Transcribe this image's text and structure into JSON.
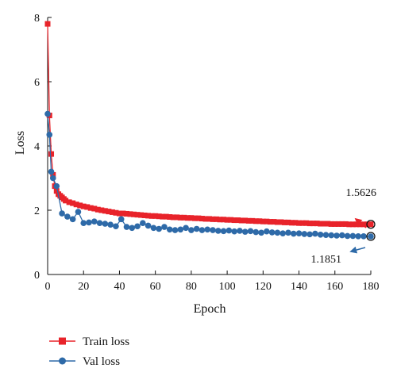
{
  "chart_data": {
    "type": "line",
    "xlabel": "Epoch",
    "ylabel": "Loss",
    "xlim": [
      0,
      180
    ],
    "ylim": [
      0,
      8
    ],
    "xticks": [
      0,
      20,
      40,
      60,
      80,
      100,
      120,
      140,
      160,
      180
    ],
    "yticks": [
      0,
      2,
      4,
      6,
      8
    ],
    "grid": false,
    "legend_position": "bottom-left",
    "series": [
      {
        "name": "Train loss",
        "color": "#e8232a",
        "marker": "square",
        "x": [
          0,
          1,
          2,
          3,
          4,
          5,
          6,
          7,
          8,
          9,
          10,
          12,
          14,
          16,
          18,
          20,
          22,
          24,
          26,
          28,
          30,
          32,
          34,
          36,
          38,
          40,
          42,
          44,
          46,
          48,
          50,
          52,
          54,
          56,
          58,
          60,
          62,
          64,
          66,
          68,
          70,
          72,
          74,
          76,
          78,
          80,
          82,
          84,
          86,
          88,
          90,
          92,
          94,
          96,
          98,
          100,
          102,
          104,
          106,
          108,
          110,
          112,
          114,
          116,
          118,
          120,
          122,
          124,
          126,
          128,
          130,
          132,
          134,
          136,
          138,
          140,
          142,
          144,
          146,
          148,
          150,
          152,
          154,
          156,
          158,
          160,
          162,
          164,
          166,
          168,
          170,
          172,
          174,
          176,
          178,
          180
        ],
        "y": [
          7.8,
          4.95,
          3.75,
          3.1,
          2.75,
          2.6,
          2.5,
          2.45,
          2.4,
          2.35,
          2.3,
          2.25,
          2.22,
          2.18,
          2.15,
          2.12,
          2.1,
          2.07,
          2.05,
          2.02,
          2.0,
          1.98,
          1.96,
          1.94,
          1.92,
          1.9,
          1.9,
          1.89,
          1.88,
          1.87,
          1.86,
          1.85,
          1.84,
          1.83,
          1.82,
          1.82,
          1.81,
          1.8,
          1.8,
          1.79,
          1.78,
          1.78,
          1.77,
          1.77,
          1.76,
          1.76,
          1.75,
          1.75,
          1.74,
          1.73,
          1.73,
          1.72,
          1.72,
          1.71,
          1.71,
          1.7,
          1.7,
          1.69,
          1.69,
          1.68,
          1.68,
          1.67,
          1.67,
          1.66,
          1.66,
          1.65,
          1.65,
          1.64,
          1.64,
          1.63,
          1.63,
          1.62,
          1.62,
          1.61,
          1.61,
          1.6,
          1.6,
          1.6,
          1.59,
          1.59,
          1.59,
          1.58,
          1.58,
          1.58,
          1.57,
          1.57,
          1.57,
          1.57,
          1.57,
          1.56,
          1.56,
          1.56,
          1.56,
          1.56,
          1.56,
          1.5626
        ]
      },
      {
        "name": "Val loss",
        "color": "#2e6aa8",
        "marker": "circle",
        "x": [
          0,
          1,
          2,
          3,
          5,
          8,
          11,
          14,
          17,
          20,
          23,
          26,
          29,
          32,
          35,
          38,
          41,
          44,
          47,
          50,
          53,
          56,
          59,
          62,
          65,
          68,
          71,
          74,
          77,
          80,
          83,
          86,
          89,
          92,
          95,
          98,
          101,
          104,
          107,
          110,
          113,
          116,
          119,
          122,
          125,
          128,
          131,
          134,
          137,
          140,
          143,
          146,
          149,
          152,
          155,
          158,
          161,
          164,
          167,
          170,
          173,
          176,
          180
        ],
        "y": [
          5.0,
          4.35,
          3.2,
          3.0,
          2.75,
          1.9,
          1.8,
          1.72,
          1.95,
          1.6,
          1.62,
          1.65,
          1.6,
          1.58,
          1.55,
          1.5,
          1.72,
          1.48,
          1.45,
          1.5,
          1.6,
          1.52,
          1.45,
          1.42,
          1.48,
          1.4,
          1.38,
          1.4,
          1.45,
          1.38,
          1.42,
          1.38,
          1.4,
          1.38,
          1.36,
          1.35,
          1.37,
          1.34,
          1.36,
          1.33,
          1.35,
          1.32,
          1.3,
          1.34,
          1.31,
          1.3,
          1.28,
          1.3,
          1.27,
          1.28,
          1.26,
          1.25,
          1.27,
          1.24,
          1.23,
          1.22,
          1.21,
          1.22,
          1.2,
          1.2,
          1.19,
          1.19,
          1.1851
        ]
      }
    ],
    "annotations": [
      {
        "text": "1.5626",
        "series": "Train loss",
        "x": 180,
        "y": 1.5626
      },
      {
        "text": "1.1851",
        "series": "Val loss",
        "x": 180,
        "y": 1.1851
      }
    ]
  }
}
